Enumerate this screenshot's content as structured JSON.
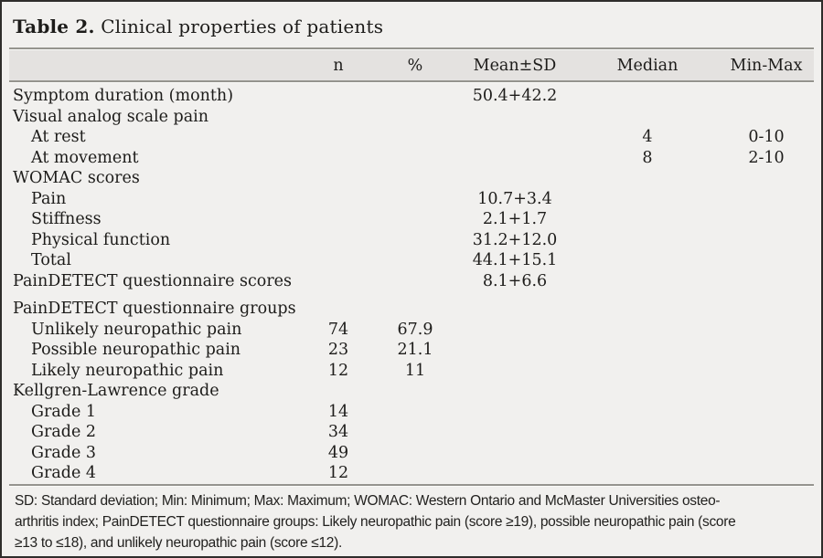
{
  "title": {
    "prefix": "Table 2.",
    "text": "Clinical properties of patients"
  },
  "columns": {
    "label": "",
    "n": "n",
    "pct": "%",
    "mean_sd": "Mean±SD",
    "median": "Median",
    "min_max": "Min-Max"
  },
  "rows": [
    {
      "label": "Symptom duration (month)",
      "mean_sd": "50.4+42.2"
    },
    {
      "label": "Visual analog scale pain"
    },
    {
      "label": "At rest",
      "median": "4",
      "min_max": "0-10"
    },
    {
      "label": "At movement",
      "median": "8",
      "min_max": "2-10"
    },
    {
      "label": "WOMAC scores"
    },
    {
      "label": "Pain",
      "mean_sd": "10.7+3.4"
    },
    {
      "label": "Stiffness",
      "mean_sd": "2.1+1.7"
    },
    {
      "label": "Physical function",
      "mean_sd": "31.2+12.0"
    },
    {
      "label": "Total",
      "mean_sd": "44.1+15.1"
    },
    {
      "label": "PainDETECT questionnaire scores",
      "mean_sd": "8.1+6.6"
    },
    {
      "label": "PainDETECT questionnaire groups"
    },
    {
      "label": "Unlikely neuropathic pain",
      "n": "74",
      "pct": "67.9"
    },
    {
      "label": "Possible neuropathic pain",
      "n": "23",
      "pct": "21.1"
    },
    {
      "label": "Likely neuropathic pain",
      "n": "12",
      "pct": "11"
    },
    {
      "label": "Kellgren-Lawrence grade"
    },
    {
      "label": "Grade 1",
      "n": "14"
    },
    {
      "label": "Grade 2",
      "n": "34"
    },
    {
      "label": "Grade 3",
      "n": "49"
    },
    {
      "label": "Grade 4",
      "n": "12"
    }
  ],
  "footnote": {
    "lines": [
      "SD: Standard deviation; Min: Minimum; Max: Maximum; WOMAC: Western Ontario and McMaster Universities osteo-",
      "arthritis index; PainDETECT questionnaire groups: Likely neuropathic pain (score ≥19), possible neuropathic pain (score",
      "≥13 to ≤18), and unlikely neuropathic pain (score ≤12)."
    ]
  },
  "colors": {
    "page_background": "#f1f0ee",
    "header_band": "#e4e2e0",
    "rule": "#95948e",
    "outer_border": "#2e2d2b",
    "text": "#1d1c1a"
  }
}
